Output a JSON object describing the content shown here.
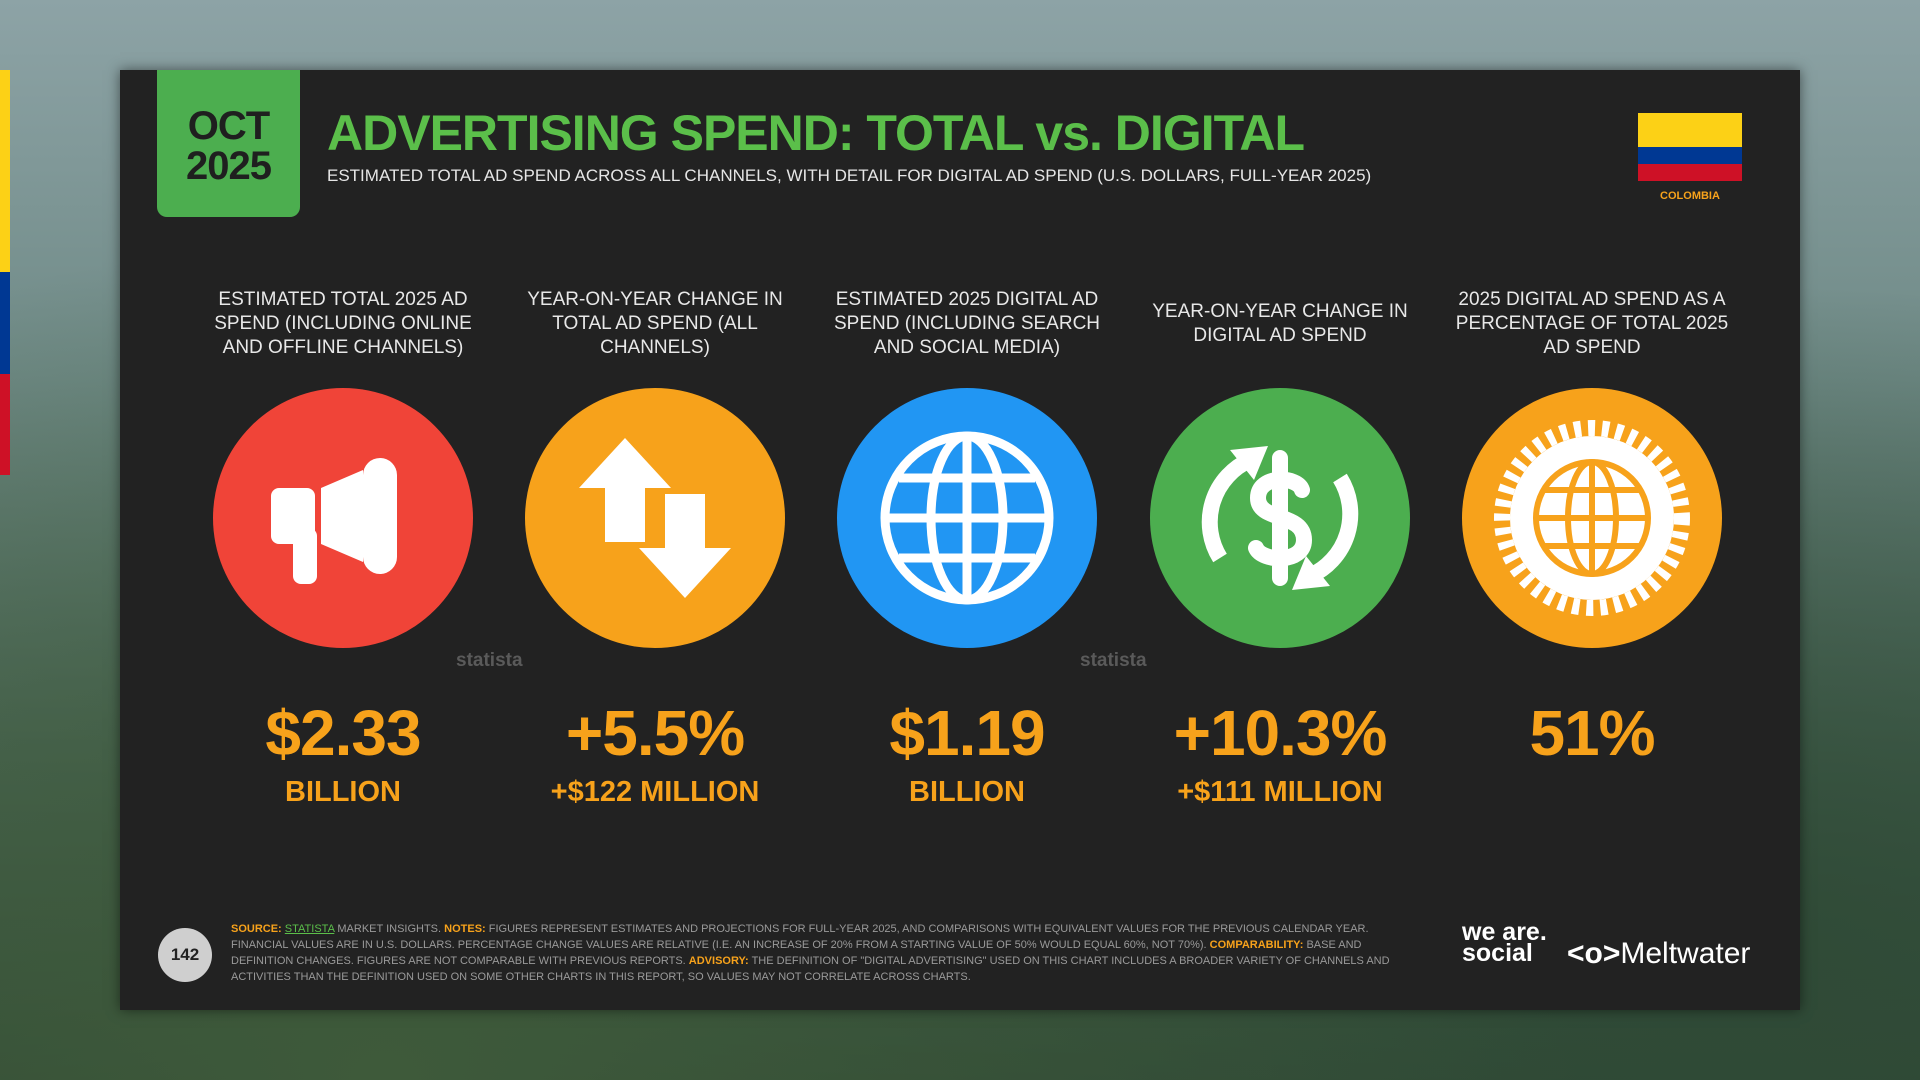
{
  "header": {
    "month": "OCT",
    "year": "2025",
    "title": "ADVERTISING SPEND: TOTAL vs. DIGITAL",
    "subtitle": "ESTIMATED TOTAL AD SPEND ACROSS ALL CHANNELS, WITH DETAIL FOR DIGITAL AD SPEND (U.S. DOLLARS, FULL-YEAR 2025)",
    "country": "COLOMBIA"
  },
  "stats": [
    {
      "label": "ESTIMATED TOTAL 2025 AD SPEND (INCLUDING ONLINE AND OFFLINE CHANNELS)",
      "value": "$2.33",
      "unit": "BILLION"
    },
    {
      "label": "YEAR-ON-YEAR CHANGE IN TOTAL AD SPEND (ALL CHANNELS)",
      "value": "+5.5%",
      "unit": "+$122 MILLION"
    },
    {
      "label": "ESTIMATED 2025 DIGITAL AD SPEND (INCLUDING SEARCH AND SOCIAL MEDIA)",
      "value": "$1.19",
      "unit": "BILLION"
    },
    {
      "label": "YEAR-ON-YEAR CHANGE IN DIGITAL AD SPEND",
      "value": "+10.3%",
      "unit": "+$111 MILLION"
    },
    {
      "label": "2025 DIGITAL AD SPEND AS A PERCENTAGE OF TOTAL 2025 AD SPEND",
      "value": "51%"
    }
  ],
  "watermarks": [
    "statista",
    "statista"
  ],
  "footer": {
    "page": "142",
    "source_label": "SOURCE:",
    "source_link": "STATISTA",
    "source_text": "MARKET INSIGHTS.",
    "notes_label": "NOTES:",
    "notes_text": "FIGURES REPRESENT ESTIMATES AND PROJECTIONS FOR FULL-YEAR 2025, AND COMPARISONS WITH EQUIVALENT VALUES FOR THE PREVIOUS CALENDAR YEAR. FINANCIAL VALUES ARE IN U.S. DOLLARS. PERCENTAGE CHANGE VALUES ARE RELATIVE (I.E. AN INCREASE OF 20% FROM A STARTING VALUE OF 50% WOULD EQUAL 60%, NOT 70%).",
    "comparability_label": "COMPARABILITY:",
    "comparability_text": "BASE AND DEFINITION CHANGES. FIGURES ARE NOT COMPARABLE WITH PREVIOUS REPORTS.",
    "advisory_label": "ADVISORY:",
    "advisory_text": "THE DEFINITION OF \"DIGITAL ADVERTISING\" USED ON THIS CHART INCLUDES A BROADER VARIETY OF CHANNELS AND ACTIVITIES THAN THE DEFINITION USED ON SOME OTHER CHARTS IN THIS REPORT, SO VALUES MAY NOT CORRELATE ACROSS CHARTS.",
    "logo_left": "we are. social",
    "logo_right": "Meltwater"
  }
}
